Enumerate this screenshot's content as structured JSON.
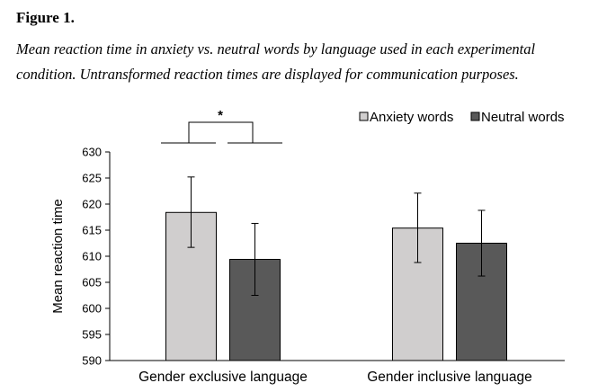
{
  "figure": {
    "label": "Figure 1.",
    "caption": "Mean reaction time in anxiety vs. neutral words by language used in each experimental condition. Untransformed reaction times are displayed for communication purposes."
  },
  "chart_data": {
    "type": "bar",
    "categories": [
      "Gender exclusive language",
      "Gender inclusive language"
    ],
    "series": [
      {
        "name": "Anxiety words",
        "color": "#d0cece",
        "values": [
          618.4,
          615.4
        ],
        "error_low": [
          611.7,
          608.8
        ],
        "error_high": [
          625.2,
          622.1
        ]
      },
      {
        "name": "Neutral words",
        "color": "#595959",
        "values": [
          609.4,
          612.5
        ],
        "error_low": [
          602.5,
          606.2
        ],
        "error_high": [
          616.3,
          618.8
        ]
      }
    ],
    "ylabel": "Mean reaction time",
    "xlabel": "",
    "ylim": [
      590,
      630
    ],
    "yticks": [
      590,
      595,
      600,
      605,
      610,
      615,
      620,
      625,
      630
    ],
    "grid": false,
    "legend_position": "top-right",
    "significance": {
      "label": "*",
      "category": "Gender exclusive language"
    }
  }
}
